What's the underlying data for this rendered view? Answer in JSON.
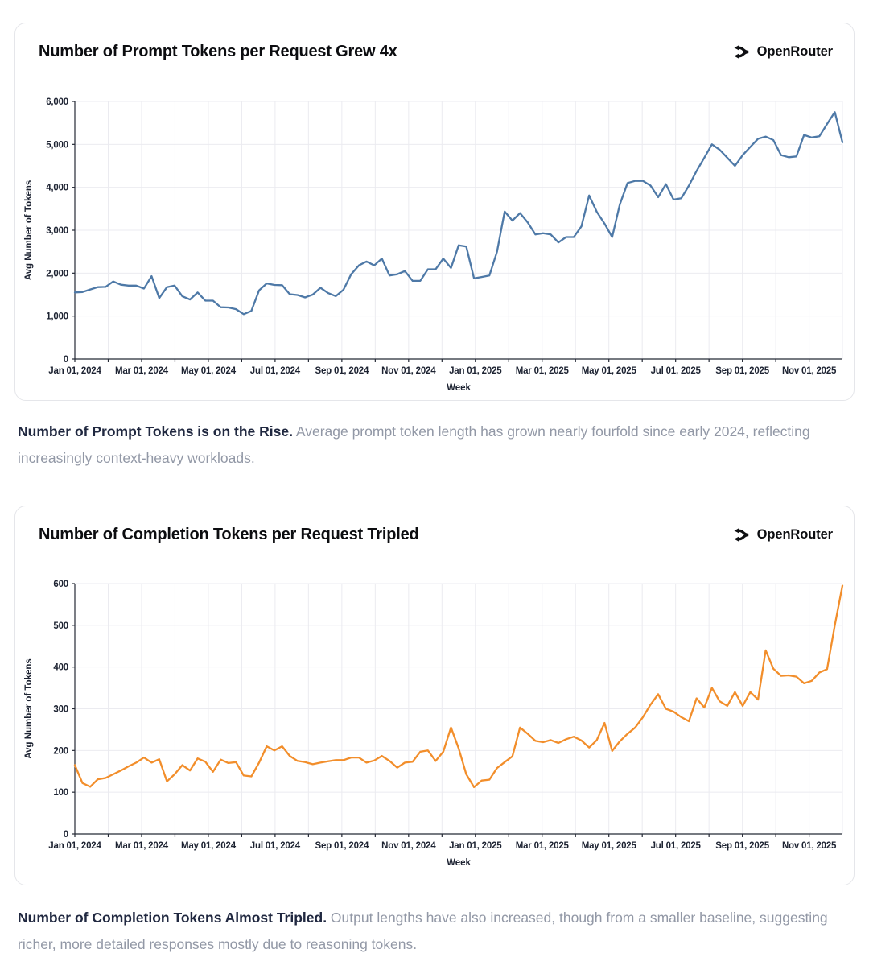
{
  "brand": {
    "name": "OpenRouter"
  },
  "chart_data": [
    {
      "type": "line",
      "title": "Number of Prompt Tokens per Request Grew 4x",
      "xlabel": "Week",
      "ylabel": "Avg Number of Tokens",
      "ylim": [
        0,
        6000
      ],
      "y_tick_step": 1000,
      "y_ticks": [
        "0",
        "1,000",
        "2,000",
        "3,000",
        "4,000",
        "5,000",
        "6,000"
      ],
      "x_start": "2024-01-01",
      "x_interval": "weekly",
      "x_ticks": [
        "Jan 01, 2024",
        "Mar 01, 2024",
        "May 01, 2024",
        "Jul 01, 2024",
        "Sep 01, 2024",
        "Nov 01, 2024",
        "Jan 01, 2025",
        "Mar 01, 2025",
        "May 01, 2025",
        "Jul 01, 2025",
        "Sep 01, 2025",
        "Nov 01, 2025"
      ],
      "grid": true,
      "legend": "none",
      "line_color": "#4e79a7",
      "values": [
        1550,
        1560,
        1620,
        1675,
        1680,
        1805,
        1730,
        1710,
        1710,
        1640,
        1930,
        1420,
        1675,
        1710,
        1460,
        1385,
        1550,
        1360,
        1360,
        1205,
        1200,
        1160,
        1045,
        1120,
        1600,
        1760,
        1725,
        1720,
        1510,
        1490,
        1435,
        1500,
        1660,
        1535,
        1465,
        1615,
        1975,
        2180,
        2270,
        2180,
        2340,
        1945,
        1975,
        2050,
        1820,
        1820,
        2090,
        2090,
        2340,
        2120,
        2650,
        2620,
        1880,
        1910,
        1945,
        2500,
        3435,
        3225,
        3400,
        3180,
        2900,
        2930,
        2900,
        2715,
        2840,
        2840,
        3090,
        3810,
        3430,
        3155,
        2840,
        3600,
        4100,
        4150,
        4150,
        4040,
        3770,
        4075,
        3715,
        3745,
        4040,
        4380,
        4690,
        5000,
        4875,
        4690,
        4500,
        4750,
        4940,
        5130,
        5180,
        5100,
        4750,
        4700,
        4720,
        5220,
        5160,
        5190,
        5475,
        5750,
        5050
      ]
    },
    {
      "type": "line",
      "title": "Number of Completion Tokens per Request Tripled",
      "xlabel": "Week",
      "ylabel": "Avg Number of Tokens",
      "ylim": [
        0,
        600
      ],
      "y_tick_step": 100,
      "y_ticks": [
        "0",
        "100",
        "200",
        "300",
        "400",
        "500",
        "600"
      ],
      "x_start": "2024-01-01",
      "x_interval": "weekly",
      "x_ticks": [
        "Jan 01, 2024",
        "Mar 01, 2024",
        "May 01, 2024",
        "Jul 01, 2024",
        "Sep 01, 2024",
        "Nov 01, 2024",
        "Jan 01, 2025",
        "Mar 01, 2025",
        "May 01, 2025",
        "Jul 01, 2025",
        "Sep 01, 2025",
        "Nov 01, 2025"
      ],
      "grid": true,
      "legend": "none",
      "line_color": "#f28e2b",
      "values": [
        165,
        122,
        113,
        131,
        134,
        143,
        152,
        162,
        171,
        183,
        171,
        179,
        126,
        143,
        165,
        152,
        181,
        173,
        149,
        178,
        170,
        172,
        140,
        138,
        171,
        210,
        200,
        210,
        187,
        175,
        172,
        167,
        171,
        174,
        177,
        177,
        183,
        183,
        171,
        176,
        187,
        175,
        159,
        171,
        173,
        197,
        200,
        175,
        197,
        255,
        205,
        143,
        112,
        128,
        130,
        158,
        172,
        186,
        255,
        240,
        223,
        220,
        225,
        218,
        227,
        233,
        224,
        207,
        225,
        266,
        199,
        222,
        240,
        255,
        280,
        310,
        335,
        300,
        293,
        280,
        270,
        325,
        303,
        350,
        318,
        307,
        340,
        307,
        340,
        322,
        440,
        396,
        379,
        380,
        377,
        361,
        367,
        387,
        395,
        500,
        595
      ]
    }
  ],
  "captions": [
    {
      "bold": "Number of Prompt Tokens is on the Rise.",
      "text": " Average prompt token length has grown nearly fourfold since early 2024, reflecting increasingly context-heavy workloads."
    },
    {
      "bold": "Number of Completion Tokens Almost Tripled.",
      "text": " Output lengths have also increased, though from a smaller baseline, suggesting richer, more detailed responses mostly due to reasoning tokens."
    }
  ],
  "style": {
    "grid_color": "#ebebf0",
    "axis_color": "#252a36",
    "tick_label_color": "#1d2332"
  }
}
